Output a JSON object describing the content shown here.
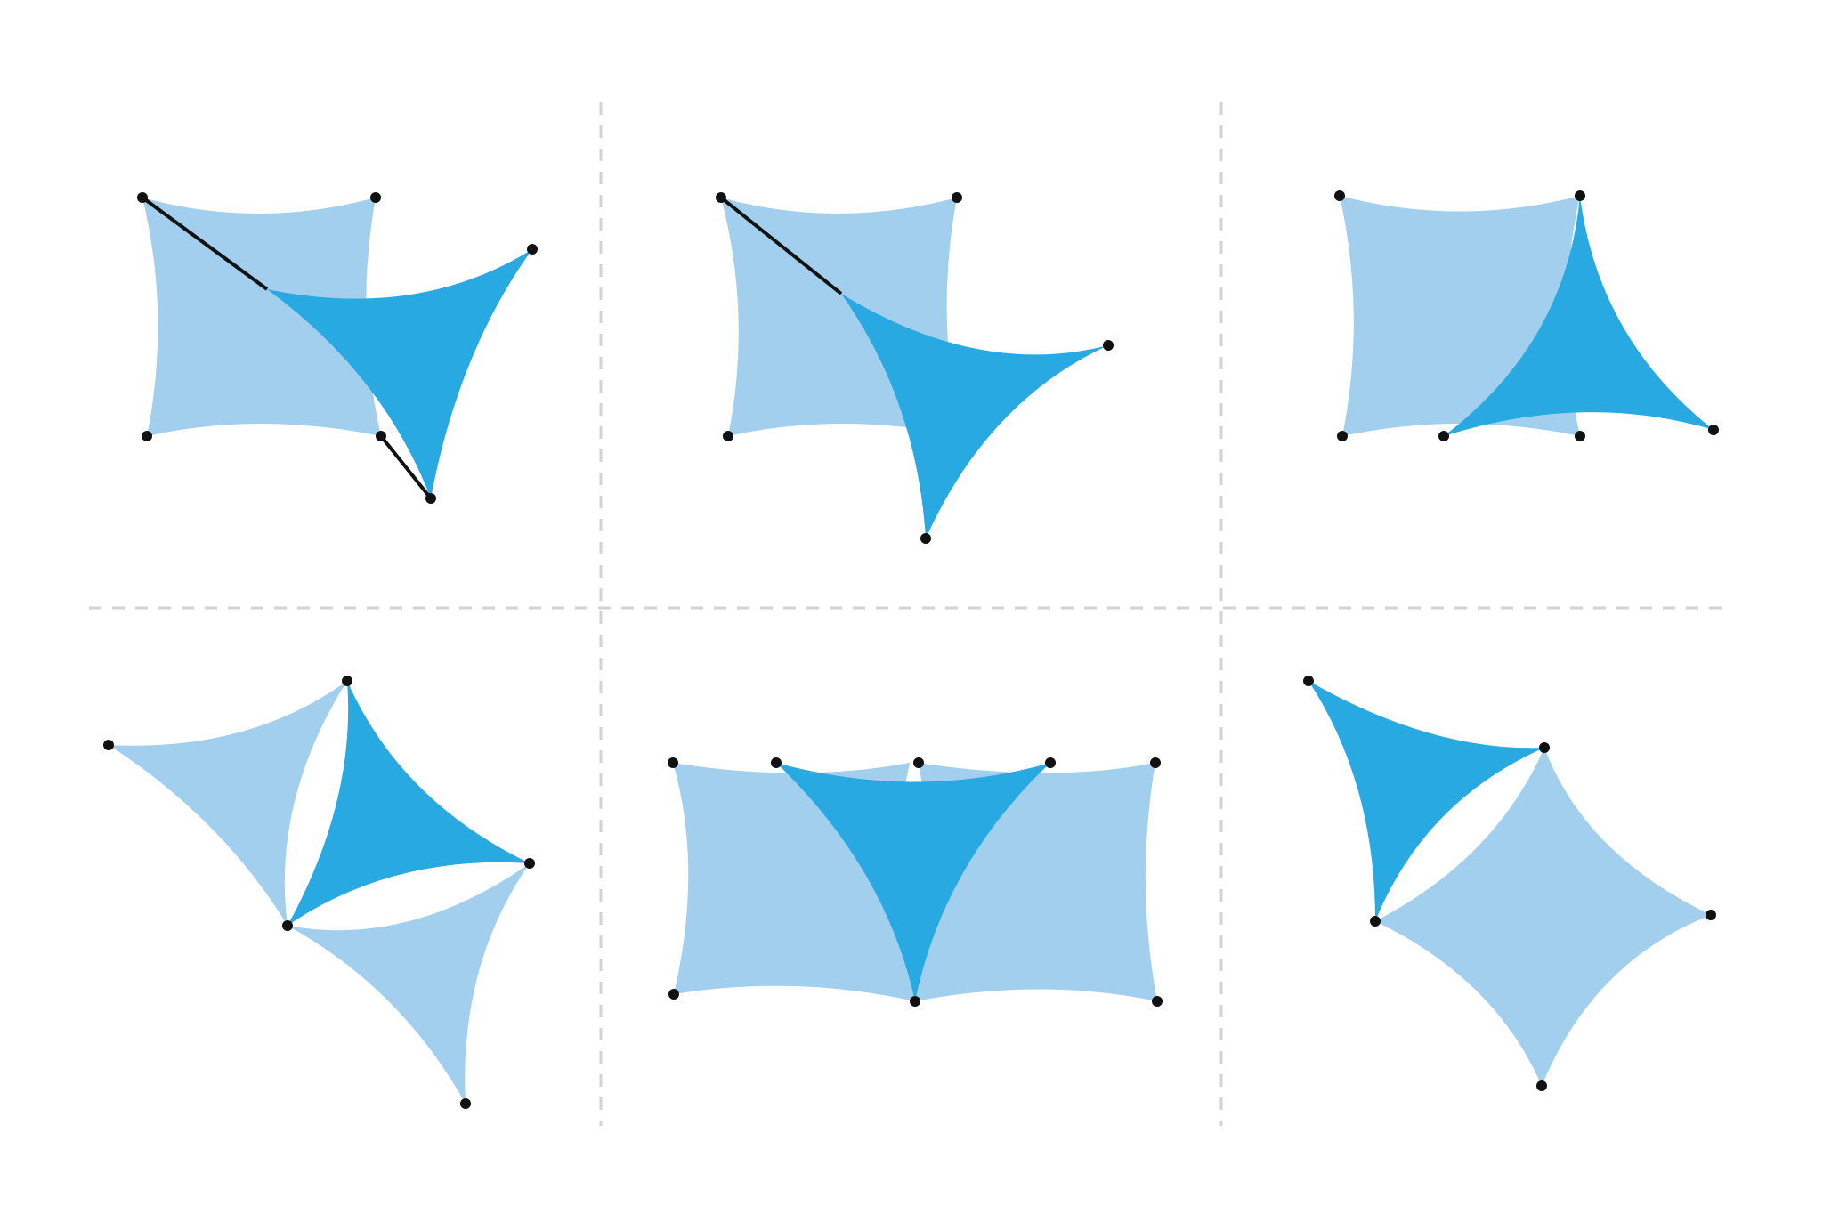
{
  "colors": {
    "background": "#ffffff",
    "sail_light": "#a2cfee",
    "sail_dark": "#29a9e1",
    "post": "#111111",
    "rope": "#111111",
    "divider": "#d3d3d3"
  },
  "panels": [
    {
      "id": "panel-1",
      "description_name": "square-sail-with-triangle-sail-tensioned-by-ropes"
    },
    {
      "id": "panel-2",
      "description_name": "square-sail-with-triangle-sail-one-rope"
    },
    {
      "id": "panel-3",
      "description_name": "square-sail-with-triangle-sail-shared-post"
    },
    {
      "id": "panel-4",
      "description_name": "three-triangle-sails-shared-posts"
    },
    {
      "id": "panel-5",
      "description_name": "two-square-sails-with-center-triangle"
    },
    {
      "id": "panel-6",
      "description_name": "triangle-sail-and-diamond-sail"
    }
  ]
}
